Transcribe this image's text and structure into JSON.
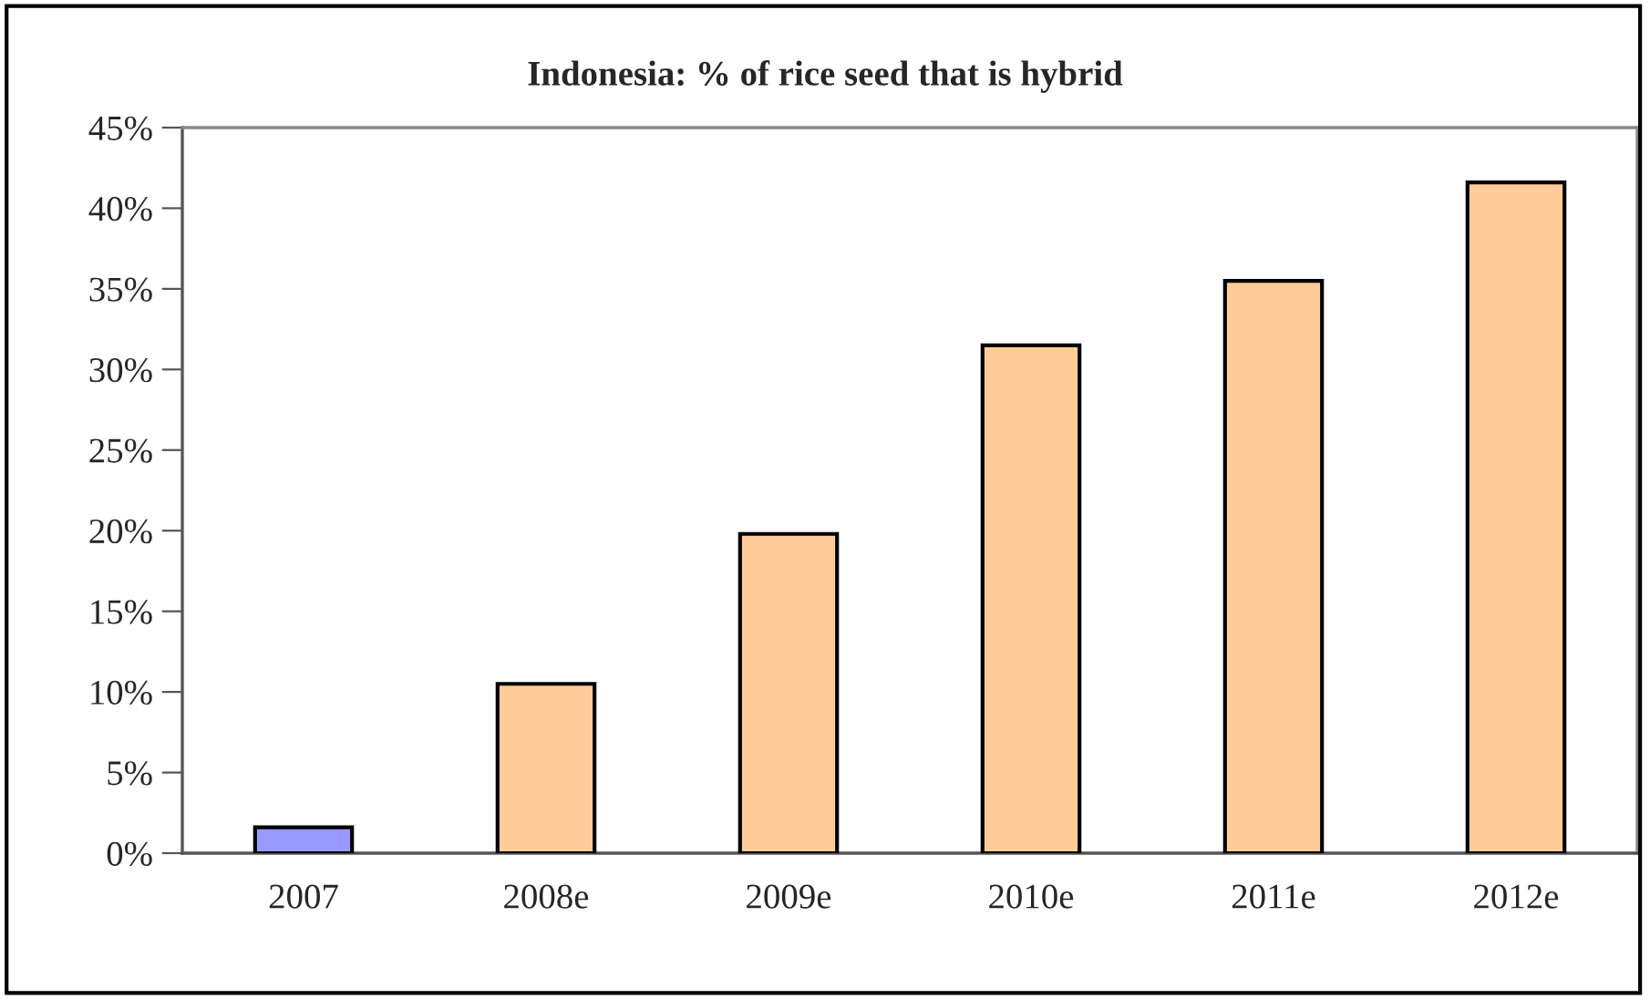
{
  "chart_data": {
    "type": "bar",
    "title": "Indonesia: % of rice seed that is hybrid",
    "categories": [
      "2007",
      "2008e",
      "2009e",
      "2010e",
      "2011e",
      "2012e"
    ],
    "values": [
      1.6,
      10.5,
      19.8,
      31.5,
      35.5,
      41.6
    ],
    "colors": [
      "#9999ff",
      "#ffcc99",
      "#ffcc99",
      "#ffcc99",
      "#ffcc99",
      "#ffcc99"
    ],
    "ylim": [
      0,
      45
    ],
    "yticks": [
      {
        "value": 0,
        "label": "0%"
      },
      {
        "value": 5,
        "label": "5%"
      },
      {
        "value": 10,
        "label": "10%"
      },
      {
        "value": 15,
        "label": "15%"
      },
      {
        "value": 20,
        "label": "20%"
      },
      {
        "value": 25,
        "label": "25%"
      },
      {
        "value": 30,
        "label": "30%"
      },
      {
        "value": 35,
        "label": "35%"
      },
      {
        "value": 40,
        "label": "40%"
      },
      {
        "value": 45,
        "label": "45%"
      }
    ],
    "grid": false,
    "legend": false
  }
}
